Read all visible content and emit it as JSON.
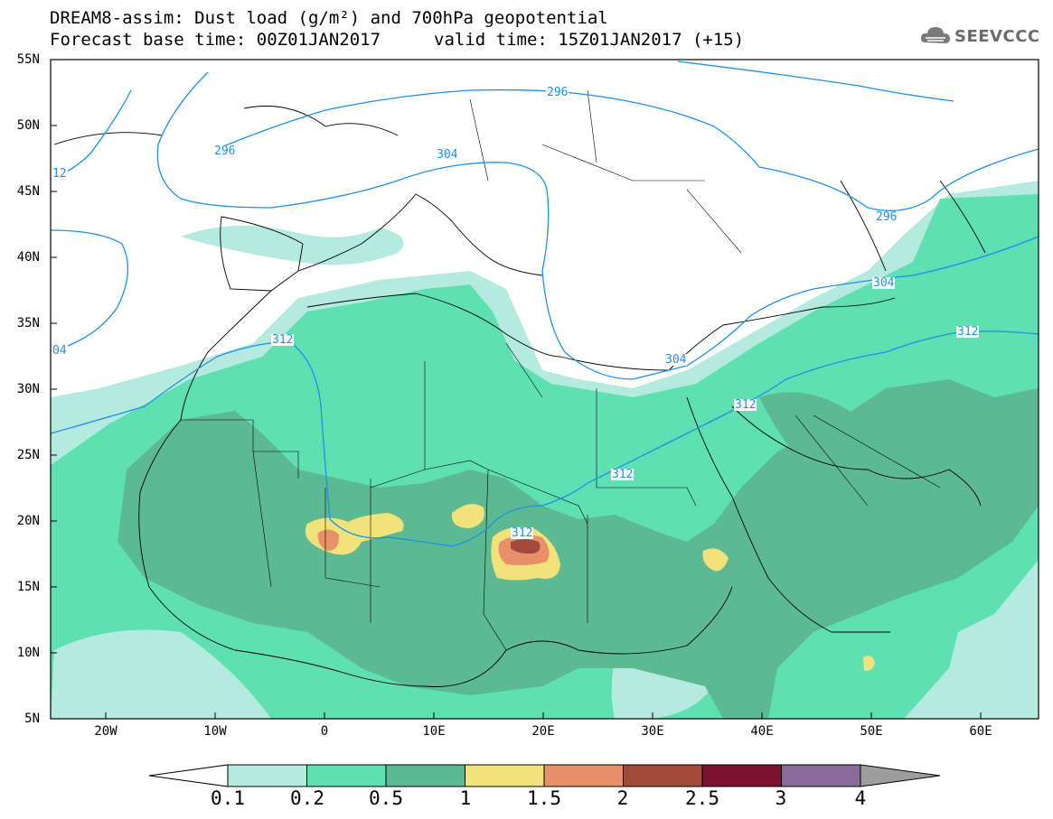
{
  "header": {
    "title_line1": "DREAM8-assim: Dust load (g/m²) and 700hPa geopotential",
    "title_line2": "Forecast base time: 00Z01JAN2017",
    "valid_time": "valid time: 15Z01JAN2017 (+15)",
    "logo_text": "SEEVCCC"
  },
  "axes": {
    "latitude_labels": [
      "55N",
      "50N",
      "45N",
      "40N",
      "35N",
      "30N",
      "25N",
      "20N",
      "15N",
      "10N",
      "5N"
    ],
    "longitude_labels": [
      "20W",
      "10W",
      "0",
      "10E",
      "20E",
      "30E",
      "40E",
      "50E",
      "60E"
    ]
  },
  "contours": {
    "labels": [
      "296",
      "296",
      "304",
      "296",
      "304",
      "312",
      "304",
      "312",
      "312",
      "312",
      "312",
      "12",
      "04"
    ],
    "line_color": "#1e90e6"
  },
  "colorbar": {
    "ticks": [
      "0.1",
      "0.2",
      "0.5",
      "1",
      "1.5",
      "2",
      "2.5",
      "3",
      "4"
    ],
    "colors": [
      "#ffffff",
      "#b5eadf",
      "#5ee0b3",
      "#5cb991",
      "#f1e27a",
      "#e8906a",
      "#a14a3c",
      "#7a1230",
      "#8a6a9a",
      "#9e9e9e"
    ]
  }
}
